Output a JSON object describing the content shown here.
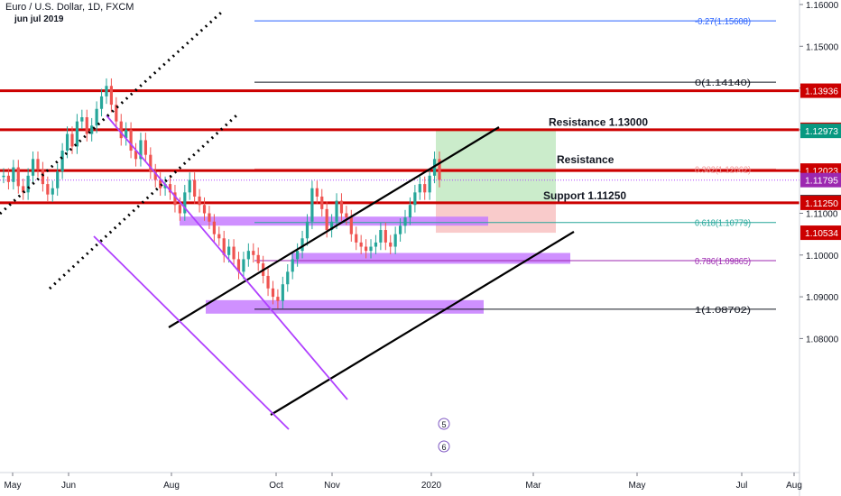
{
  "header": {
    "symbol": "Euro / U.S. Dollar, 1D, FXCM",
    "subtitle": "jun jul 2019"
  },
  "colors": {
    "red_line": "#cc0000",
    "purple": "#b040ff",
    "purple_fill": "#c77dff",
    "green_zone": "#b9e6b9",
    "red_zone": "#f7b9b9",
    "fib_blue": "#2962ff",
    "fib_green": "#26a69a",
    "fib_purple": "#9c27b0",
    "axis_text": "#131722",
    "bull": "#26a69a",
    "bear": "#ef5350"
  },
  "chart_data": {
    "type": "line",
    "y_axis": {
      "range": [
        1.0785,
        1.1605
      ],
      "ticks": [
        "1.16000",
        "1.15000",
        "1.14000",
        "1.13000",
        "1.12000",
        "1.11000",
        "1.10000",
        "1.09000",
        "1.08000"
      ]
    },
    "x_axis": {
      "ticks": [
        "May",
        "Jun",
        "Aug",
        "Oct",
        "Nov",
        "2020",
        "Mar",
        "May",
        "Jul",
        "Aug"
      ]
    },
    "price_labels": [
      {
        "value": 1.13936,
        "text": "1.13936",
        "color": "#cc0000"
      },
      {
        "value": 1.13,
        "text": "1.13000",
        "color": "#cc0000"
      },
      {
        "value": 1.12973,
        "text": "1.12973",
        "color": "#089981"
      },
      {
        "value": 1.12023,
        "text": "1.12023",
        "color": "#cc0000"
      },
      {
        "value": 1.11795,
        "text": "1.11795",
        "color": "#9c27b0"
      },
      {
        "value": 1.11266,
        "text": "1.11266",
        "color": "#131722"
      },
      {
        "value": 1.1125,
        "text": "1.11250",
        "color": "#cc0000"
      },
      {
        "value": 1.10534,
        "text": "1.10534",
        "color": "#cc0000"
      }
    ],
    "horizontal_levels": [
      {
        "value": 1.13936
      },
      {
        "value": 1.13
      },
      {
        "value": 1.12023
      },
      {
        "value": 1.1125
      }
    ],
    "annotations": [
      {
        "text": "Resistance 1.13000",
        "value": 1.131
      },
      {
        "text": "Resistance",
        "value": 1.122
      },
      {
        "text": "Support 1.11250",
        "value": 1.1134
      }
    ],
    "fibonacci": [
      {
        "label": "-0.27(1.15608)",
        "value": 1.15608,
        "color": "#2962ff"
      },
      {
        "label": "0(1.14140)",
        "value": 1.1414,
        "color": "#131722"
      },
      {
        "label": "0.382(1.12062)",
        "value": 1.12062,
        "color": "#ef9a9a"
      },
      {
        "label": "0.618(1.10779)",
        "value": 1.10779,
        "color": "#26a69a"
      },
      {
        "label": "0.786(1.09865)",
        "value": 1.09865,
        "color": "#9c27b0"
      },
      {
        "label": "1(1.08702)",
        "value": 1.08702,
        "color": "#131722"
      }
    ],
    "event_markers": [
      "5",
      "6"
    ],
    "series": [
      {
        "name": "EURUSD",
        "values": [
          1.119,
          1.1175,
          1.121,
          1.1165,
          1.115,
          1.119,
          1.123,
          1.1205,
          1.117,
          1.1145,
          1.116,
          1.12,
          1.125,
          1.129,
          1.126,
          1.132,
          1.133,
          1.129,
          1.131,
          1.135,
          1.138,
          1.1405,
          1.136,
          1.132,
          1.128,
          1.13,
          1.125,
          1.123,
          1.1275,
          1.124,
          1.12,
          1.118,
          1.116,
          1.117,
          1.115,
          1.112,
          1.11,
          1.115,
          1.118,
          1.114,
          1.112,
          1.11,
          1.108,
          1.105,
          1.104,
          1.1,
          1.102,
          1.099,
          1.096,
          1.099,
          1.101,
          1.1,
          1.098,
          1.095,
          1.092,
          1.09,
          1.089,
          1.093,
          1.096,
          1.099,
          1.101,
          1.104,
          1.108,
          1.116,
          1.114,
          1.111,
          1.106,
          1.108,
          1.113,
          1.11,
          1.109,
          1.105,
          1.103,
          1.102,
          1.101,
          1.102,
          1.103,
          1.106,
          1.103,
          1.102,
          1.105,
          1.107,
          1.109,
          1.112,
          1.115,
          1.117,
          1.115,
          1.119,
          1.123,
          1.118
        ]
      }
    ],
    "grid": false,
    "legend": "none"
  }
}
